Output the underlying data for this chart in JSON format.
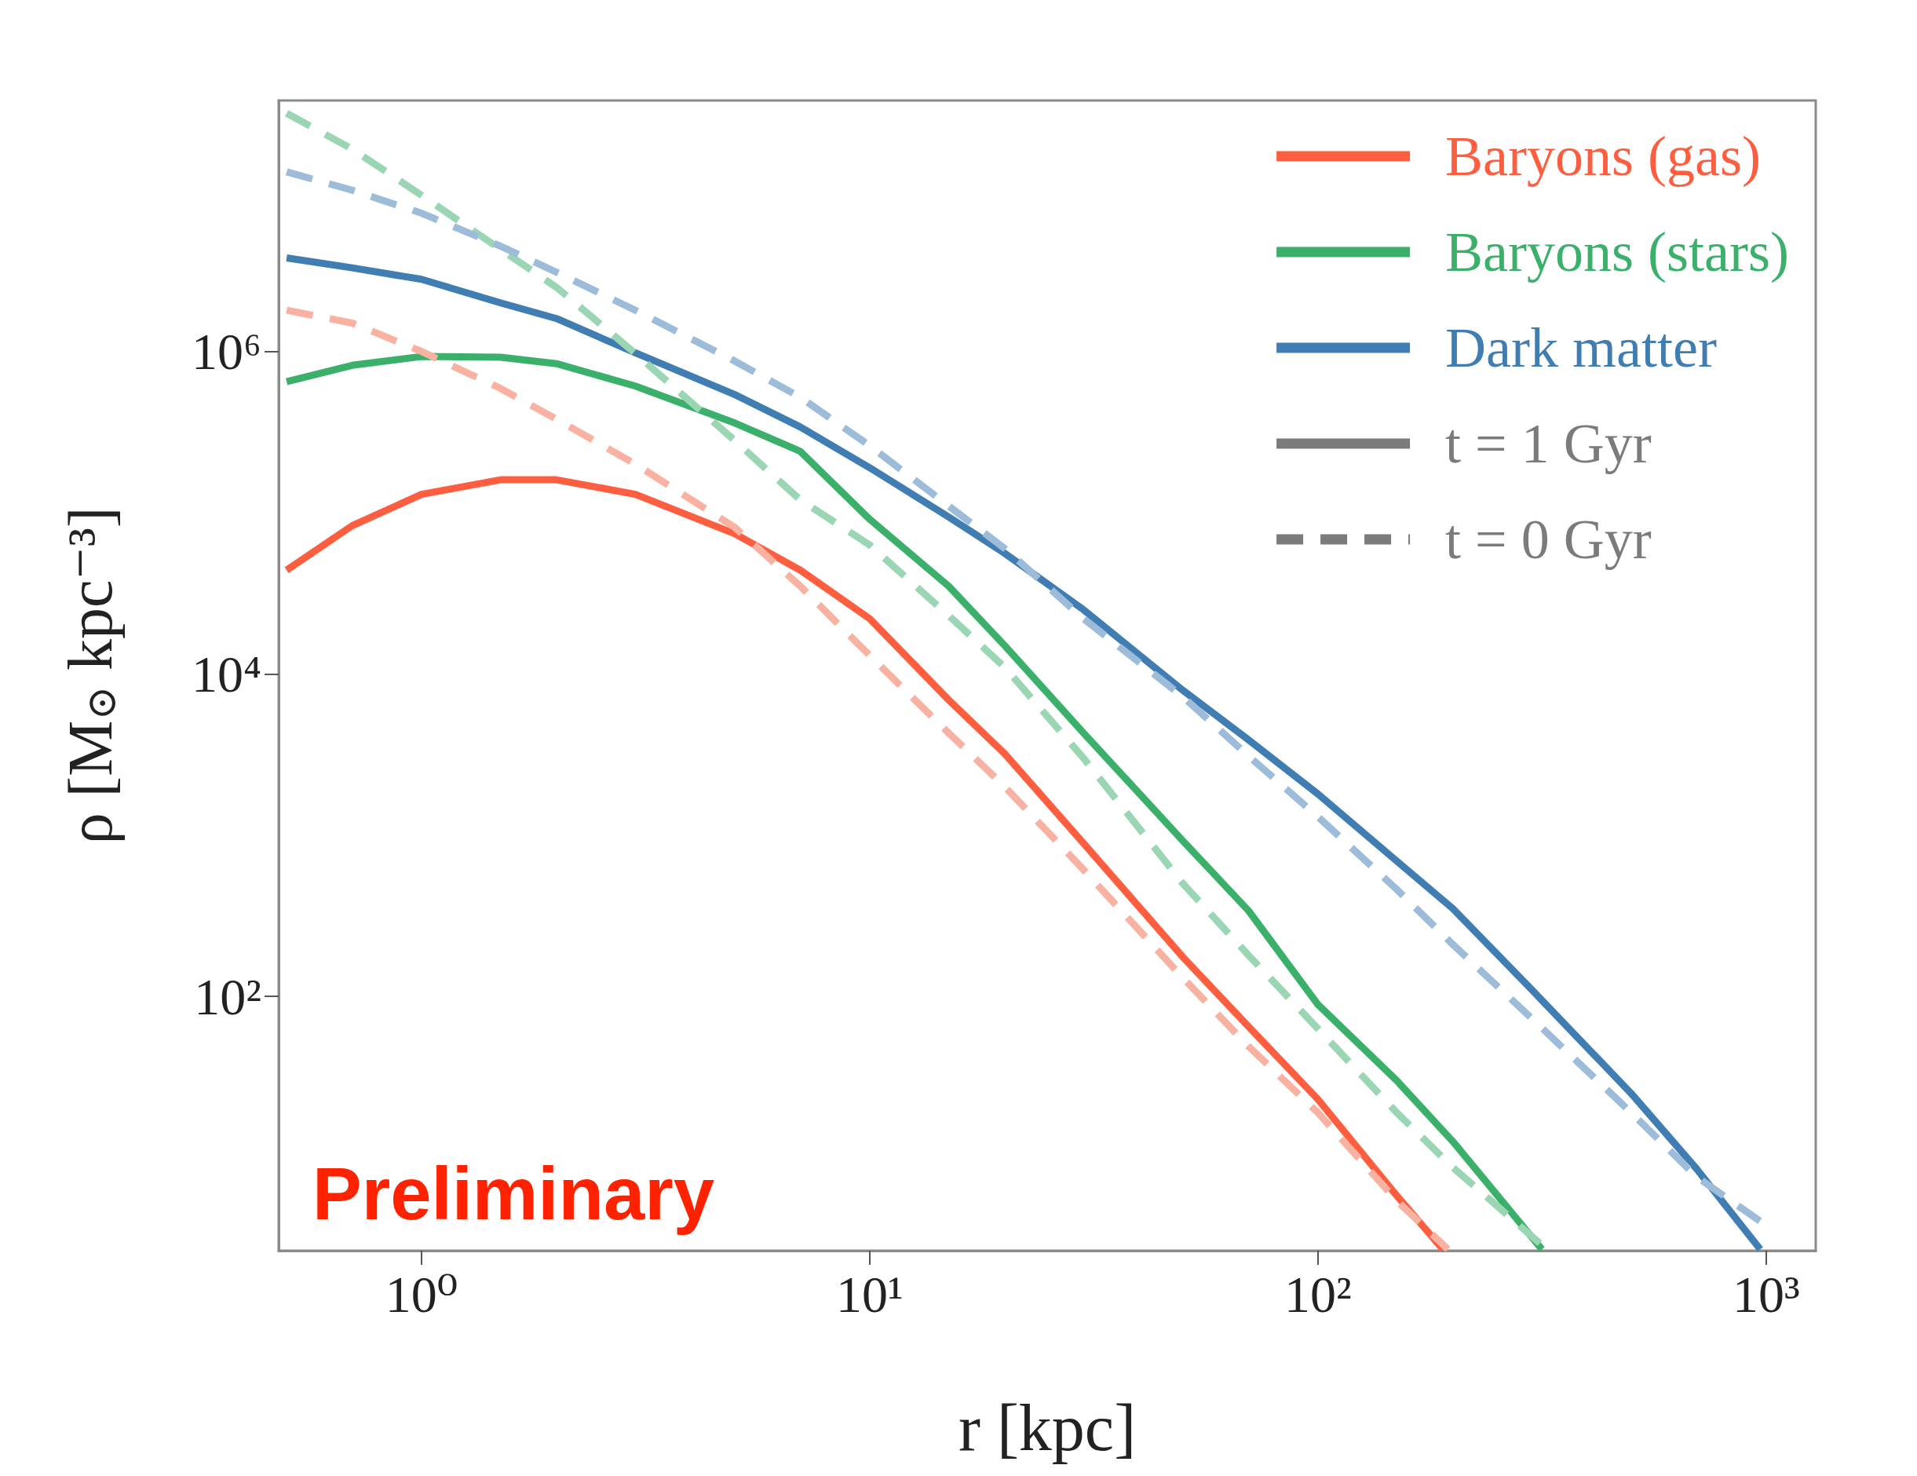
{
  "chart_data": {
    "type": "line",
    "xlabel": "r [kpc]",
    "ylabel": "ρ [M$_{⊙}$ kpc⁻³]",
    "log": "xy",
    "xlim": [
      0.48,
      1290
    ],
    "ylim": [
      2.65,
      36000000.0
    ],
    "xticks": [
      {
        "value": 1,
        "label": "10⁰"
      },
      {
        "value": 10,
        "label": "10¹"
      },
      {
        "value": 100,
        "label": "10²"
      },
      {
        "value": 1000,
        "label": "10³"
      }
    ],
    "yticks": [
      {
        "value": 100,
        "label": "10²"
      },
      {
        "value": 10000,
        "label": "10⁴"
      },
      {
        "value": 1000000,
        "label": "10⁶"
      }
    ],
    "grid": false,
    "legend": "top right",
    "marker": "none",
    "annotations": [
      "Preliminary"
    ],
    "series": [
      {
        "name": "Baryons (gas)",
        "color": "#fd5e40",
        "line_style": "solid",
        "x": [
          0.5,
          0.7,
          1,
          1.5,
          2,
          3,
          5,
          7,
          10,
          15,
          20,
          30,
          50,
          70,
          100,
          150,
          190
        ],
        "values": [
          44000,
          83000,
          130000,
          160000,
          160000,
          130000,
          74000,
          44000,
          22000,
          6900,
          3200,
          890,
          175,
          65,
          23,
          5.8,
          2.7
        ]
      },
      {
        "name": "Baryons (stars)",
        "color": "#3bb06b",
        "line_style": "solid",
        "x": [
          0.5,
          0.7,
          1,
          1.5,
          2,
          3,
          5,
          7,
          10,
          15,
          20,
          30,
          50,
          70,
          100,
          150,
          200,
          316
        ],
        "values": [
          650000,
          820000,
          930000,
          920000,
          840000,
          610000,
          360000,
          240000,
          91000,
          35000,
          15000,
          4300,
          920,
          340,
          89,
          30,
          12.6,
          2.7
        ]
      },
      {
        "name": "Dark matter",
        "color": "#3f7db3",
        "line_style": "solid",
        "x": [
          0.5,
          0.7,
          1,
          1.5,
          2,
          3,
          5,
          7,
          10,
          15,
          20,
          30,
          50,
          70,
          100,
          150,
          200,
          300,
          500,
          700,
          970
        ],
        "values": [
          3800000,
          3300000,
          2800000,
          2000000,
          1600000,
          980000,
          540000,
          340000,
          190000,
          94000,
          56000,
          25000,
          7900,
          3900,
          1800,
          690,
          350,
          110,
          25,
          8.5,
          2.7
        ]
      },
      {
        "color": "#f9b2a2",
        "line_style": "dashed",
        "x": [
          0.5,
          0.7,
          1,
          1.5,
          2,
          3,
          5,
          7,
          10,
          15,
          20,
          30,
          50,
          70,
          100,
          150,
          195
        ],
        "values": [
          1800000,
          1500000,
          1000000,
          590000,
          380000,
          200000,
          81000,
          35000,
          13000,
          4300,
          2000,
          610,
          130,
          49,
          19,
          5.4,
          2.7
        ]
      },
      {
        "color": "#9bd6b4",
        "line_style": "dashed",
        "x": [
          0.5,
          0.7,
          1,
          1.5,
          2,
          3,
          5,
          7,
          10,
          15,
          20,
          30,
          50,
          70,
          100,
          150,
          200,
          324
        ],
        "values": [
          30000000,
          18000000,
          9300000,
          4300000,
          2500000,
          970000,
          280000,
          120000,
          63000,
          23000,
          11000,
          3000,
          500,
          180,
          63,
          19,
          8.7,
          2.7
        ]
      },
      {
        "color": "#9dbcda",
        "line_style": "dashed",
        "x": [
          0.5,
          0.7,
          1,
          1.5,
          2,
          3,
          5,
          7,
          10,
          15,
          20,
          30,
          50,
          70,
          100,
          150,
          200,
          300,
          500,
          700,
          1000
        ],
        "values": [
          13000000,
          10000000,
          7200000,
          4500000,
          3100000,
          1800000,
          870000,
          520000,
          260000,
          110000,
          60000,
          22000,
          7200,
          3100,
          1300,
          460,
          210,
          73,
          19,
          7.6,
          3.8
        ]
      },
      {
        "name": "t = 1 Gyr",
        "color": "#7b7b7b",
        "line_style": "solid"
      },
      {
        "name": "t = 0 Gyr",
        "color": "#7b7b7b",
        "line_style": "dashed"
      }
    ]
  }
}
